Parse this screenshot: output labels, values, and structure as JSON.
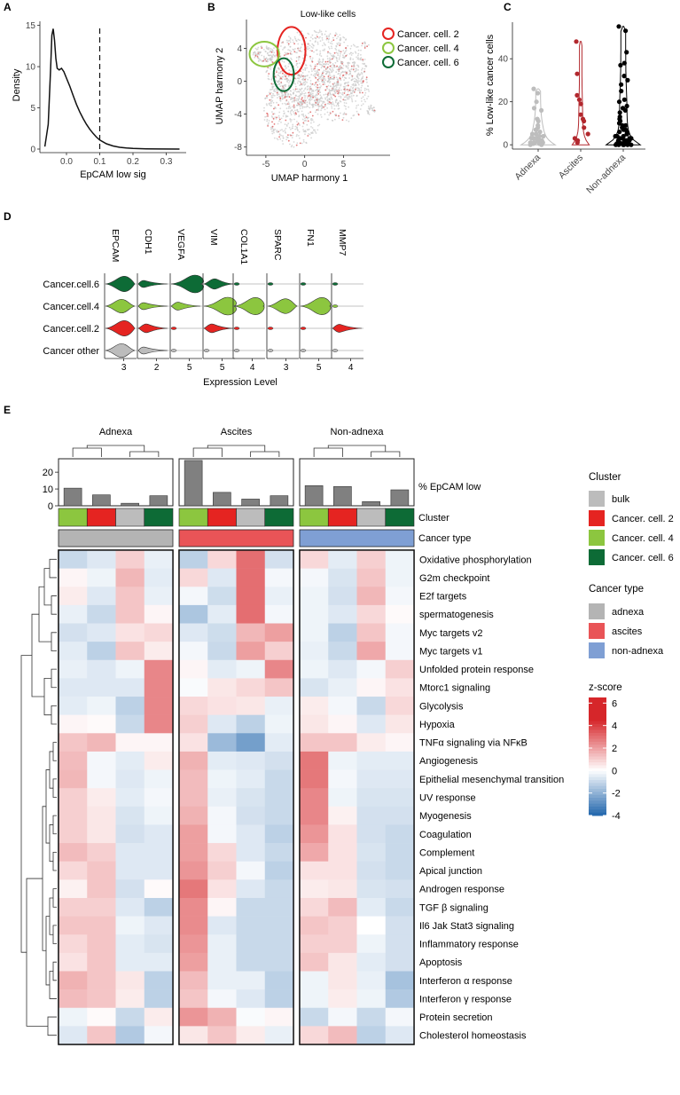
{
  "colors": {
    "bulk": "#bcbcbc",
    "cc2": "#e52421",
    "cc4": "#8cc63f",
    "cc6": "#0d6b36",
    "adnexa": "#b4b4b4",
    "ascites": "#e95457",
    "nonadnexa": "#7f9fd4",
    "neg": "#2166ac",
    "pos": "#d6262a",
    "violin_adnexa": "#bdbdbd",
    "violin_ascites": "#b2282e",
    "violin_nonadnexa": "#000000"
  },
  "panels": {
    "A": "A",
    "B": "B",
    "C": "C",
    "D": "D",
    "E": "E"
  },
  "chart_data": [
    {
      "id": "A",
      "type": "line",
      "title": "",
      "xlabel": "EpCAM low sig",
      "ylabel": "Density",
      "xlim": [
        -0.08,
        0.36
      ],
      "ylim": [
        0,
        15.5
      ],
      "xticks": [
        0.0,
        0.1,
        0.2,
        0.3
      ],
      "xtick_labels": [
        "0.0",
        "0.1",
        "0.2",
        "0.3"
      ],
      "yticks": [
        0,
        5,
        10,
        15
      ],
      "ytick_labels": [
        "0",
        "5",
        "10",
        "15"
      ],
      "threshold_x": 0.1,
      "x": [
        -0.065,
        -0.055,
        -0.048,
        -0.044,
        -0.04,
        -0.036,
        -0.032,
        -0.028,
        -0.022,
        -0.015,
        -0.008,
        0.0,
        0.01,
        0.02,
        0.03,
        0.04,
        0.05,
        0.06,
        0.07,
        0.08,
        0.09,
        0.1,
        0.12,
        0.14,
        0.16,
        0.18,
        0.2,
        0.24,
        0.28,
        0.34
      ],
      "y": [
        0.3,
        3.0,
        9.5,
        13.8,
        14.6,
        13.2,
        11.0,
        9.8,
        9.6,
        9.8,
        9.4,
        8.6,
        7.6,
        6.5,
        5.4,
        4.5,
        3.7,
        3.0,
        2.4,
        1.9,
        1.45,
        1.1,
        0.65,
        0.38,
        0.22,
        0.13,
        0.07,
        0.03,
        0.01,
        0.0
      ]
    },
    {
      "id": "B",
      "type": "scatter",
      "title": "Low-like cells",
      "xlabel": "UMAP harmony 1",
      "ylabel": "UMAP harmony 2",
      "xlim": [
        -7.5,
        11
      ],
      "ylim": [
        -9,
        7.5
      ],
      "xticks": [
        -5,
        0,
        5
      ],
      "xtick_labels": [
        "-5",
        "0",
        "5"
      ],
      "yticks": [
        -8,
        -4,
        0,
        4
      ],
      "ytick_labels": [
        "-8",
        "-4",
        "0",
        "4"
      ],
      "legend": [
        "Cancer. cell. 2",
        "Cancer. cell. 4",
        "Cancer. cell. 6"
      ],
      "highlight_ellipses": [
        {
          "label": "Cancer. cell. 2",
          "cx": -1.7,
          "cy": 3.7,
          "rx": 1.8,
          "ry": 2.9
        },
        {
          "label": "Cancer. cell. 4",
          "cx": -5.2,
          "cy": 3.3,
          "rx": 1.9,
          "ry": 1.5
        },
        {
          "label": "Cancer. cell. 6",
          "cx": -2.7,
          "cy": 0.8,
          "rx": 1.3,
          "ry": 2.0
        }
      ]
    },
    {
      "id": "C",
      "type": "violin",
      "ylabel": "% Low-like cancer cells",
      "categories": [
        "Adnexa",
        "Ascites",
        "Non-adnexa"
      ],
      "ylim": [
        -2,
        57
      ],
      "yticks": [
        0,
        20,
        40
      ],
      "ytick_labels": [
        "0",
        "20",
        "40"
      ],
      "points": [
        [
          26,
          24,
          20,
          17,
          16,
          12,
          11,
          9,
          8,
          7,
          7,
          6,
          5,
          5,
          4,
          4,
          3,
          3,
          3,
          2,
          2,
          2,
          2,
          1,
          1,
          1,
          1,
          0.5,
          0.5,
          0,
          0
        ],
        [
          48,
          33,
          23,
          21,
          19,
          14,
          12,
          11,
          8,
          5,
          3,
          2,
          1
        ],
        [
          55,
          53,
          43,
          38,
          37,
          32,
          30,
          28,
          25,
          21,
          20,
          18,
          17,
          16,
          15,
          13,
          12,
          11,
          10,
          9,
          9,
          8,
          8,
          7,
          7,
          6,
          6,
          5,
          5,
          5,
          4,
          4,
          4,
          3,
          3,
          3,
          3,
          2,
          2,
          2,
          2,
          2,
          1,
          1,
          1,
          1,
          1,
          1,
          0.5,
          0.5,
          0.5,
          0,
          0,
          0,
          0,
          0,
          0
        ]
      ]
    },
    {
      "id": "D",
      "type": "violin",
      "xlabel": "Expression Level",
      "genes": [
        "EPCAM",
        "CDH1",
        "VEGFA",
        "VIM",
        "COL1A1",
        "SPARC",
        "FN1",
        "MMP7"
      ],
      "groups": [
        "Cancer.cell.6",
        "Cancer.cell.4",
        "Cancer.cell.2",
        "Cancer other"
      ],
      "tick_labels": [
        "3",
        "2",
        "5",
        "5",
        "4",
        "3",
        "5",
        "4"
      ],
      "mean_expression": [
        [
          3.0,
          0.5,
          4.0,
          1.5,
          0.3,
          0.3,
          0.2,
          0.1
        ],
        [
          2.5,
          0.5,
          0.8,
          4.0,
          3.5,
          2.8,
          3.5,
          0.1
        ],
        [
          3.0,
          1.0,
          0.3,
          1.0,
          0.2,
          0.2,
          0.2,
          0.8
        ],
        [
          2.5,
          0.5,
          0.3,
          0.3,
          0.1,
          0.1,
          0.1,
          0.2
        ]
      ]
    },
    {
      "id": "E",
      "type": "heatmap",
      "bar_ylabel": "% EpCAM low",
      "bar_ylim": [
        0,
        28
      ],
      "bar_yticks": [
        0,
        10,
        20
      ],
      "bar_ytick_labels": [
        "0",
        "10",
        "20"
      ],
      "groups": [
        "Adnexa",
        "Ascites",
        "Non-adnexa"
      ],
      "column_clusters": [
        "Cancer. cell. 4",
        "Cancer. cell. 2",
        "bulk",
        "Cancer. cell. 6",
        "Cancer. cell. 4",
        "Cancer. cell. 2",
        "bulk",
        "Cancer. cell. 6",
        "Cancer. cell. 4",
        "Cancer. cell. 2",
        "bulk",
        "Cancer. cell. 6"
      ],
      "column_cancer_type": [
        "adnexa",
        "adnexa",
        "adnexa",
        "adnexa",
        "ascites",
        "ascites",
        "ascites",
        "ascites",
        "non-adnexa",
        "non-adnexa",
        "non-adnexa",
        "non-adnexa"
      ],
      "epcam_low_pct": [
        10.5,
        6.5,
        1.5,
        6.0,
        27,
        8,
        4,
        6,
        12,
        11.5,
        2.5,
        9.5
      ],
      "annotation_labels": [
        "Cluster",
        "Cancer type"
      ],
      "legend_cluster_title": "Cluster",
      "legend_cluster": [
        "bulk",
        "Cancer. cell. 2",
        "Cancer. cell. 4",
        "Cancer. cell. 6"
      ],
      "legend_type_title": "Cancer type",
      "legend_type": [
        "adnexa",
        "ascites",
        "non-adnexa"
      ],
      "legend_z_title": "z-score",
      "z_ticks": [
        6,
        4,
        2,
        0,
        -2,
        -4
      ],
      "z_tick_labels": [
        "6",
        "4",
        "2",
        "0",
        "-2",
        "-4"
      ],
      "z_range": [
        -4,
        6.5
      ],
      "rows": [
        "Oxidative phosphorylation",
        "G2m checkpoint",
        "E2f targets",
        "spermatogenesis",
        "Myc targets v2",
        "Myc targets v1",
        "Unfolded protein response",
        "Mtorc1 signaling",
        "Glycolysis",
        "Hypoxia",
        "TNFα signaling via NFκB",
        "Angiogenesis",
        "Epithelial mesenchymal transition",
        "UV response",
        "Myogenesis",
        "Coagulation",
        "Complement",
        "Apical junction",
        "Androgen response",
        "TGF β signaling",
        "Il6 Jak Stat3 signaling",
        "Inflammatory response",
        "Apoptosis",
        "Interferon α response",
        "Interferon γ response",
        "Protein secretion",
        "Cholesterol homeostasis"
      ],
      "values": [
        [
          -1.0,
          -0.6,
          1.0,
          -0.4,
          -1.2,
          0.8,
          3.0,
          -0.8,
          0.8,
          -0.5,
          1.0,
          -0.3
        ],
        [
          0.2,
          -0.3,
          1.5,
          -0.5,
          0.8,
          -0.6,
          3.0,
          -0.2,
          -0.2,
          -0.7,
          1.2,
          -0.3
        ],
        [
          0.4,
          -0.6,
          1.2,
          -0.4,
          -0.2,
          -0.9,
          3.0,
          -0.4,
          -0.3,
          -0.8,
          1.5,
          -0.2
        ],
        [
          -0.4,
          -1.0,
          1.2,
          0.2,
          -1.5,
          -0.5,
          3.0,
          -0.2,
          -0.3,
          -0.6,
          0.8,
          0.1
        ],
        [
          -0.8,
          -0.6,
          0.6,
          0.8,
          -0.6,
          -0.9,
          1.5,
          2.0,
          -0.3,
          -1.2,
          1.2,
          -0.2
        ],
        [
          -0.5,
          -1.2,
          1.2,
          0.4,
          -0.2,
          -1.0,
          2.0,
          1.0,
          -0.4,
          -1.0,
          1.8,
          -0.2
        ],
        [
          -0.4,
          -0.6,
          -0.3,
          2.5,
          0.2,
          -0.5,
          -0.3,
          2.5,
          -0.3,
          -0.6,
          -0.2,
          1.0
        ],
        [
          -0.6,
          -0.6,
          -0.6,
          2.5,
          -0.1,
          0.5,
          0.8,
          1.2,
          -0.7,
          -0.4,
          0.2,
          0.6
        ],
        [
          -0.5,
          -0.3,
          -1.2,
          2.5,
          0.8,
          0.6,
          0.5,
          -0.4,
          0.4,
          -0.2,
          -1.0,
          0.8
        ],
        [
          0.2,
          0.1,
          -1.0,
          2.5,
          1.0,
          -0.6,
          -1.2,
          -0.3,
          0.5,
          0.2,
          -0.6,
          0.5
        ],
        [
          1.2,
          1.5,
          0.2,
          0.2,
          0.6,
          -1.8,
          -2.5,
          -0.5,
          1.2,
          1.2,
          0.4,
          0.2
        ],
        [
          1.4,
          -0.2,
          -0.5,
          0.4,
          1.6,
          -0.5,
          -0.6,
          -0.8,
          2.8,
          -0.3,
          -0.5,
          -0.5
        ],
        [
          1.5,
          -0.2,
          -0.6,
          -0.3,
          1.4,
          -0.3,
          -0.5,
          -1.0,
          2.8,
          -0.2,
          -0.6,
          -0.6
        ],
        [
          1.0,
          0.4,
          -0.5,
          -0.2,
          1.4,
          -0.4,
          -0.7,
          -1.0,
          2.5,
          -0.3,
          -0.7,
          -0.7
        ],
        [
          1.0,
          0.5,
          -0.7,
          -0.3,
          1.6,
          -0.2,
          -0.8,
          -1.0,
          2.5,
          0.3,
          -0.8,
          -0.8
        ],
        [
          1.0,
          0.5,
          -0.8,
          -0.6,
          2.0,
          -0.2,
          -0.6,
          -1.2,
          2.2,
          0.6,
          -0.8,
          -1.0
        ],
        [
          1.4,
          1.0,
          -0.6,
          -0.6,
          2.0,
          0.8,
          -0.6,
          -1.0,
          1.8,
          0.6,
          -0.7,
          -1.0
        ],
        [
          0.8,
          1.2,
          -0.6,
          -0.6,
          2.2,
          1.0,
          -0.2,
          -1.2,
          0.6,
          0.6,
          -0.8,
          -1.0
        ],
        [
          0.3,
          1.2,
          -0.8,
          0.1,
          2.8,
          0.6,
          -0.6,
          -1.0,
          0.4,
          0.5,
          -0.7,
          -0.8
        ],
        [
          1.0,
          1.0,
          -0.6,
          -1.2,
          2.4,
          0.2,
          -1.0,
          -1.0,
          0.8,
          1.4,
          -0.5,
          -1.0
        ],
        [
          1.2,
          1.2,
          -0.3,
          -0.6,
          2.4,
          -0.6,
          -1.0,
          -1.0,
          1.2,
          1.0,
          0.0,
          -0.8
        ],
        [
          0.8,
          1.2,
          -0.5,
          -0.7,
          2.2,
          -0.4,
          -1.0,
          -1.0,
          1.0,
          1.0,
          -0.3,
          -0.8
        ],
        [
          0.6,
          1.2,
          -0.5,
          -0.5,
          2.0,
          -0.4,
          -1.0,
          -1.0,
          1.2,
          0.5,
          -0.5,
          -0.8
        ],
        [
          1.6,
          1.2,
          0.5,
          -1.2,
          1.4,
          -0.4,
          -0.4,
          -1.2,
          -0.3,
          0.5,
          -0.4,
          -1.6
        ],
        [
          1.4,
          1.2,
          0.4,
          -1.2,
          1.2,
          -0.2,
          -0.6,
          -1.2,
          -0.3,
          0.4,
          -0.3,
          -1.4
        ],
        [
          -0.3,
          0.1,
          -1.0,
          0.4,
          2.2,
          1.6,
          -0.1,
          0.2,
          -1.0,
          -0.2,
          -1.0,
          -0.2
        ],
        [
          -0.6,
          1.2,
          -1.4,
          -0.2,
          0.5,
          1.2,
          0.4,
          -0.4,
          0.8,
          1.4,
          -1.2,
          -0.6
        ]
      ]
    }
  ]
}
